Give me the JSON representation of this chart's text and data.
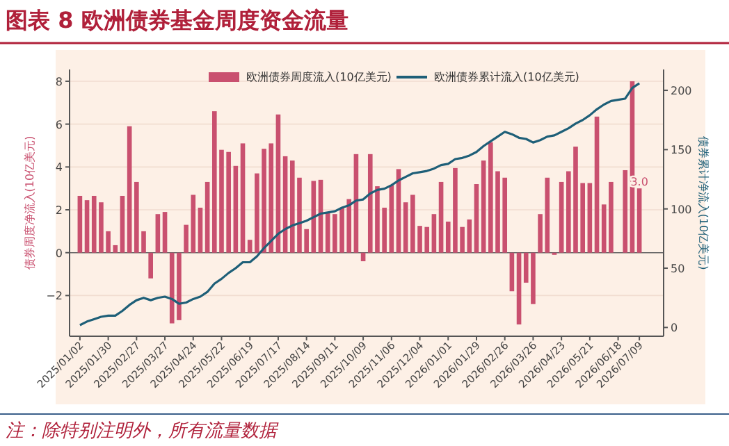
{
  "chart_data": {
    "type": "bar",
    "title": "图表 8   欧洲债券基金周度资金流量",
    "ylabel": "债券周度净流入(10亿美元)",
    "y2label": "债券累计净流入(10亿美元)",
    "annotations": [
      "注：除特别注明外，所有流量数据"
    ],
    "categories": [
      "2025/01/02",
      null,
      null,
      null,
      "2025/01/30",
      null,
      null,
      null,
      "2025/02/27",
      null,
      null,
      null,
      "2025/03/27",
      null,
      null,
      null,
      "2025/04/24",
      null,
      null,
      null,
      "2025/05/22",
      null,
      null,
      null,
      "2025/06/19",
      null,
      null,
      null,
      "2025/07/17",
      null,
      null,
      null,
      "2025/08/14",
      null,
      null,
      null,
      "2025/09/11",
      null,
      null,
      null,
      "2025/10/09",
      null,
      null,
      null,
      "2025/11/06",
      null,
      null,
      null,
      "2025/12/04",
      null,
      null,
      null,
      "2026/01/01",
      null,
      null,
      null,
      "2026/01/29",
      null,
      null,
      null,
      "2026/02/26",
      null,
      null,
      null,
      "2026/03/26",
      null,
      null,
      null,
      "2026/04/23",
      null,
      null,
      null,
      "2026/05/21",
      null,
      null,
      null,
      "2026/06/18",
      null,
      null,
      "2026/07/09"
    ],
    "series": [
      {
        "name": "欧洲债券周度流入(10亿美元)",
        "color": "#c9506f",
        "values": [
          2.65,
          2.45,
          2.65,
          2.35,
          1.0,
          0.35,
          2.65,
          5.9,
          3.3,
          1.0,
          -1.2,
          1.8,
          1.9,
          -3.3,
          -3.15,
          1.3,
          2.7,
          2.1,
          3.3,
          6.6,
          4.8,
          4.7,
          4.05,
          5.1,
          0.6,
          3.7,
          4.85,
          5.1,
          6.45,
          4.5,
          4.3,
          3.5,
          1.1,
          3.35,
          3.4,
          1.9,
          1.8,
          2.1,
          2.5,
          4.6,
          -0.4,
          4.6,
          3.1,
          2.1,
          3.15,
          3.9,
          2.35,
          2.7,
          1.25,
          1.2,
          1.8,
          3.3,
          1.45,
          3.95,
          1.2,
          1.55,
          3.2,
          4.3,
          5.15,
          3.8,
          3.5,
          -1.8,
          -3.35,
          -1.4,
          -2.4,
          1.8,
          3.5,
          -0.1,
          3.3,
          3.8,
          4.95,
          3.25,
          3.25,
          6.35,
          2.25,
          3.3,
          null,
          3.85,
          8.0,
          3.0
        ],
        "value_labels": [
          null,
          null,
          null,
          null,
          null,
          null,
          null,
          null,
          null,
          null,
          null,
          null,
          null,
          null,
          null,
          null,
          null,
          null,
          null,
          null,
          null,
          null,
          null,
          null,
          null,
          null,
          null,
          null,
          null,
          null,
          null,
          null,
          null,
          null,
          null,
          null,
          null,
          null,
          null,
          null,
          null,
          null,
          null,
          null,
          null,
          null,
          null,
          null,
          null,
          null,
          null,
          null,
          null,
          null,
          null,
          null,
          null,
          null,
          null,
          null,
          null,
          null,
          null,
          null,
          null,
          null,
          null,
          null,
          null,
          null,
          null,
          null,
          null,
          null,
          null,
          null,
          null,
          null,
          null,
          "3.0"
        ]
      },
      {
        "name": "欧洲债券累计流入(10亿美元)",
        "type": "line",
        "axis": "y2",
        "color": "#1e5f78",
        "values": [
          2,
          5,
          7,
          9,
          10,
          10,
          14,
          19,
          23,
          25,
          23,
          25,
          26,
          24,
          20,
          21,
          24,
          26,
          30,
          37,
          41,
          46,
          50,
          55,
          55,
          60,
          67,
          73,
          79,
          83,
          86,
          88,
          90,
          93,
          96,
          97,
          98,
          101,
          103,
          107,
          108,
          113,
          116,
          117,
          120,
          124,
          127,
          130,
          131,
          132,
          134,
          137,
          138,
          142,
          143,
          145,
          148,
          153,
          157,
          161,
          165,
          163,
          160,
          159,
          156,
          158,
          161,
          162,
          165,
          168,
          172,
          175,
          179,
          184,
          188,
          191,
          192,
          193,
          202,
          206
        ]
      }
    ],
    "ylim": [
      -3.9,
      8.55
    ],
    "yticks": [
      -2,
      0,
      2,
      4,
      6,
      8
    ],
    "y2lim": [
      -7.4,
      217.6
    ],
    "y2ticks": [
      0,
      50,
      100,
      150,
      200
    ],
    "ref_lines": [
      {
        "axis": "y",
        "value": 0,
        "color": "#666666"
      }
    ],
    "grid": "y",
    "legend": "top"
  }
}
